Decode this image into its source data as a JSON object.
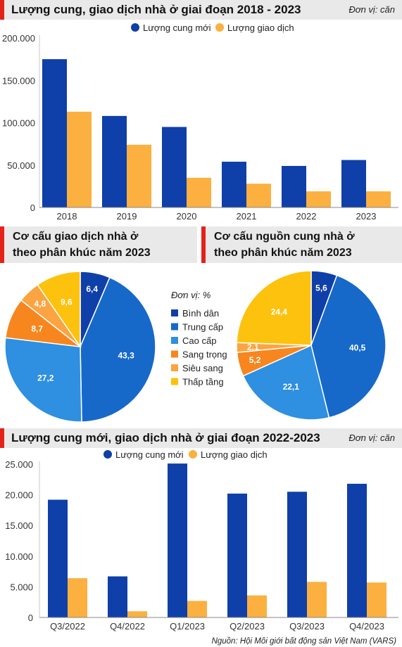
{
  "chart_data": [
    {
      "type": "bar",
      "title": "Lượng cung, giao dịch nhà ở giai đoạn 2018 - 2023",
      "unit": "Đơn vị: căn",
      "categories": [
        "2018",
        "2019",
        "2020",
        "2021",
        "2022",
        "2023"
      ],
      "series": [
        {
          "name": "Lượng cung mới",
          "color": "#0f3fa8",
          "values": [
            175000,
            108000,
            95000,
            54000,
            49000,
            56000
          ]
        },
        {
          "name": "Lượng giao dịch",
          "color": "#fbb040",
          "values": [
            113000,
            74000,
            35000,
            28000,
            19000,
            19000
          ]
        }
      ],
      "yticks": [
        "200.000",
        "150.000",
        "100.000",
        "50.000",
        "0"
      ],
      "ylim": [
        0,
        200000
      ],
      "grid": false,
      "legend": "top"
    },
    {
      "type": "pie",
      "title_lines": [
        "Cơ cấu giao dịch nhà ở",
        "theo phân khúc năm 2023"
      ],
      "labels": [
        "Bình dân",
        "Trung cấp",
        "Cao cấp",
        "Sang trọng",
        "Siêu sang",
        "Thấp tầng"
      ],
      "values": [
        6.4,
        43.3,
        27.2,
        8.7,
        4.8,
        9.6
      ],
      "value_labels": [
        "6,4",
        "43,3",
        "27,2",
        "8,7",
        "4,8",
        "9,6"
      ]
    },
    {
      "type": "pie",
      "title_lines": [
        "Cơ cấu nguồn cung nhà ở",
        "theo phân khúc năm 2023"
      ],
      "labels": [
        "Bình dân",
        "Trung cấp",
        "Cao cấp",
        "Sang trọng",
        "Siêu sang",
        "Thấp tầng"
      ],
      "values": [
        5.6,
        40.5,
        22.1,
        5.2,
        2.1,
        24.4
      ],
      "value_labels": [
        "5,6",
        "40,5",
        "22,1",
        "5,2",
        "2,1",
        "24,4"
      ]
    },
    {
      "type": "bar",
      "title": "Lượng cung mới, giao dịch nhà ở giai đoạn 2022-2023",
      "unit": "Đơn vị: căn",
      "categories": [
        "Q3/2022",
        "Q4/2022",
        "Q1/2023",
        "Q2/2023",
        "Q3/2023",
        "Q4/2023"
      ],
      "series": [
        {
          "name": "Lượng cung mới",
          "color": "#0f3fa8",
          "values": [
            19200,
            6700,
            25100,
            20200,
            20500,
            21800
          ]
        },
        {
          "name": "Lượng giao dịch",
          "color": "#fbb040",
          "values": [
            6400,
            1000,
            2700,
            3600,
            5800,
            5700
          ]
        }
      ],
      "yticks": [
        "25.000",
        "20.000",
        "15.000",
        "10.000",
        "5.000",
        "0"
      ],
      "ylim": [
        0,
        25000
      ],
      "grid": false,
      "legend": "top"
    }
  ],
  "pie_legend": {
    "unit": "Đơn vị: %",
    "items": [
      {
        "label": "Bình dân",
        "color": "#0f3fa8"
      },
      {
        "label": "Trung cấp",
        "color": "#1769c9"
      },
      {
        "label": "Cao cấp",
        "color": "#2f8fe0"
      },
      {
        "label": "Sang trọng",
        "color": "#f7861f"
      },
      {
        "label": "Siêu sang",
        "color": "#fba441"
      },
      {
        "label": "Thấp tầng",
        "color": "#fdc20e"
      }
    ]
  },
  "source": "Nguồn: Hội Môi giới bất động sản Việt Nam (VARS)"
}
